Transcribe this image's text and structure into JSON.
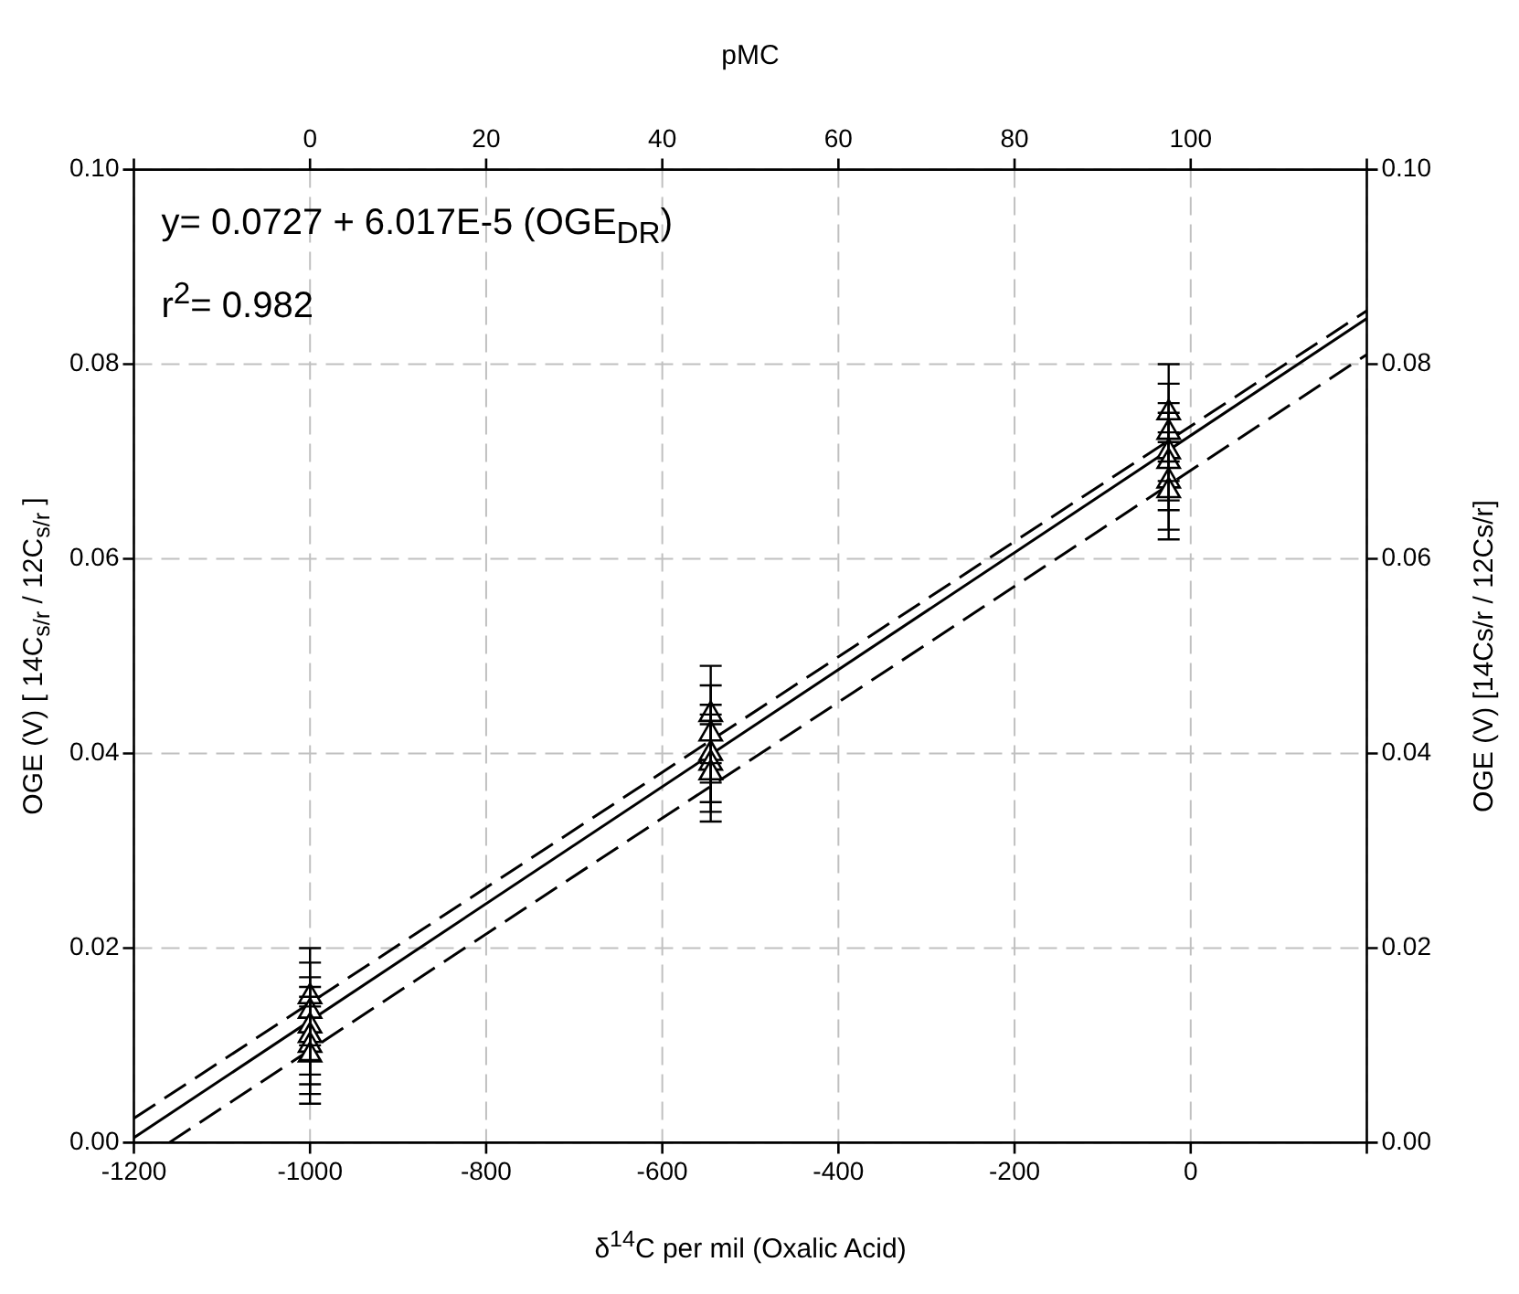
{
  "chart_data": {
    "type": "scatter",
    "xlabel": "δ$^{14}$C per mil (Oxalic Acid)",
    "x2label": "pMC",
    "ylabel": "OGE (V) [ 14C$_{s/r}$ / 12C$_{s/r}$ ]",
    "y2label": "OGE (V) [14Cs/r / 12Cs/r]",
    "annotations": [
      "y= 0.0727 + 6.017E-5 (OGE$_{DR}$)",
      "r$^{2}$= 0.982"
    ],
    "xlim": [
      -1200,
      200
    ],
    "xticks": [
      -1200,
      -1000,
      -800,
      -600,
      -400,
      -200,
      0,
      {
        "value": 200,
        "label": null
      }
    ],
    "x2lim": [
      -20,
      120
    ],
    "x2ticks": [
      {
        "value": -20,
        "label": null
      },
      0,
      20,
      40,
      60,
      80,
      100,
      {
        "value": 120,
        "label": null
      }
    ],
    "ylim": [
      0,
      0.1
    ],
    "yticks": [
      {
        "value": 0,
        "label": "0.00"
      },
      {
        "value": 0.02,
        "label": "0.02"
      },
      {
        "value": 0.04,
        "label": "0.04"
      },
      {
        "value": 0.06,
        "label": "0.06"
      },
      {
        "value": 0.08,
        "label": "0.08"
      },
      {
        "value": 0.1,
        "label": "0.10"
      }
    ],
    "y2lim": [
      0,
      0.1
    ],
    "y2ticks": [
      {
        "value": 0,
        "label": "0.00"
      },
      {
        "value": 0.02,
        "label": "0.02"
      },
      {
        "value": 0.04,
        "label": "0.04"
      },
      {
        "value": 0.06,
        "label": "0.06"
      },
      {
        "value": 0.08,
        "label": "0.08"
      },
      {
        "value": 0.1,
        "label": "0.10"
      }
    ],
    "grid": true,
    "series": [
      {
        "color": "#000000",
        "marker": "triangle",
        "x": [
          -1000,
          -1000,
          -1000,
          -1000,
          -1000,
          -1000,
          -545,
          -545,
          -545,
          -545,
          -545,
          -25,
          -25,
          -25,
          -25,
          -25,
          -25
        ],
        "values": [
          0.015,
          0.0135,
          0.012,
          0.011,
          0.01,
          0.009,
          0.044,
          0.042,
          0.04,
          0.039,
          0.038,
          0.075,
          0.073,
          0.071,
          0.07,
          0.068,
          0.067
        ],
        "errors": [
          0.005,
          0.005,
          0.005,
          0.005,
          0.005,
          0.005,
          0.005,
          0.005,
          0.005,
          0.005,
          0.005,
          0.005,
          0.005,
          0.005,
          0.005,
          0.005,
          0.005
        ]
      },
      {
        "type": "line",
        "color": "#000000",
        "line_style": "solid",
        "x": [
          -1200,
          200
        ],
        "values": [
          0.0005,
          0.0847
        ]
      },
      {
        "type": "line",
        "color": "#000000",
        "line_style": "dashed",
        "x": [
          -1200,
          200
        ],
        "values": [
          0.0025,
          0.0855
        ]
      },
      {
        "type": "line",
        "color": "#000000",
        "line_style": "dashed",
        "x": [
          -1160,
          200
        ],
        "values": [
          0.0,
          0.081
        ]
      }
    ]
  }
}
